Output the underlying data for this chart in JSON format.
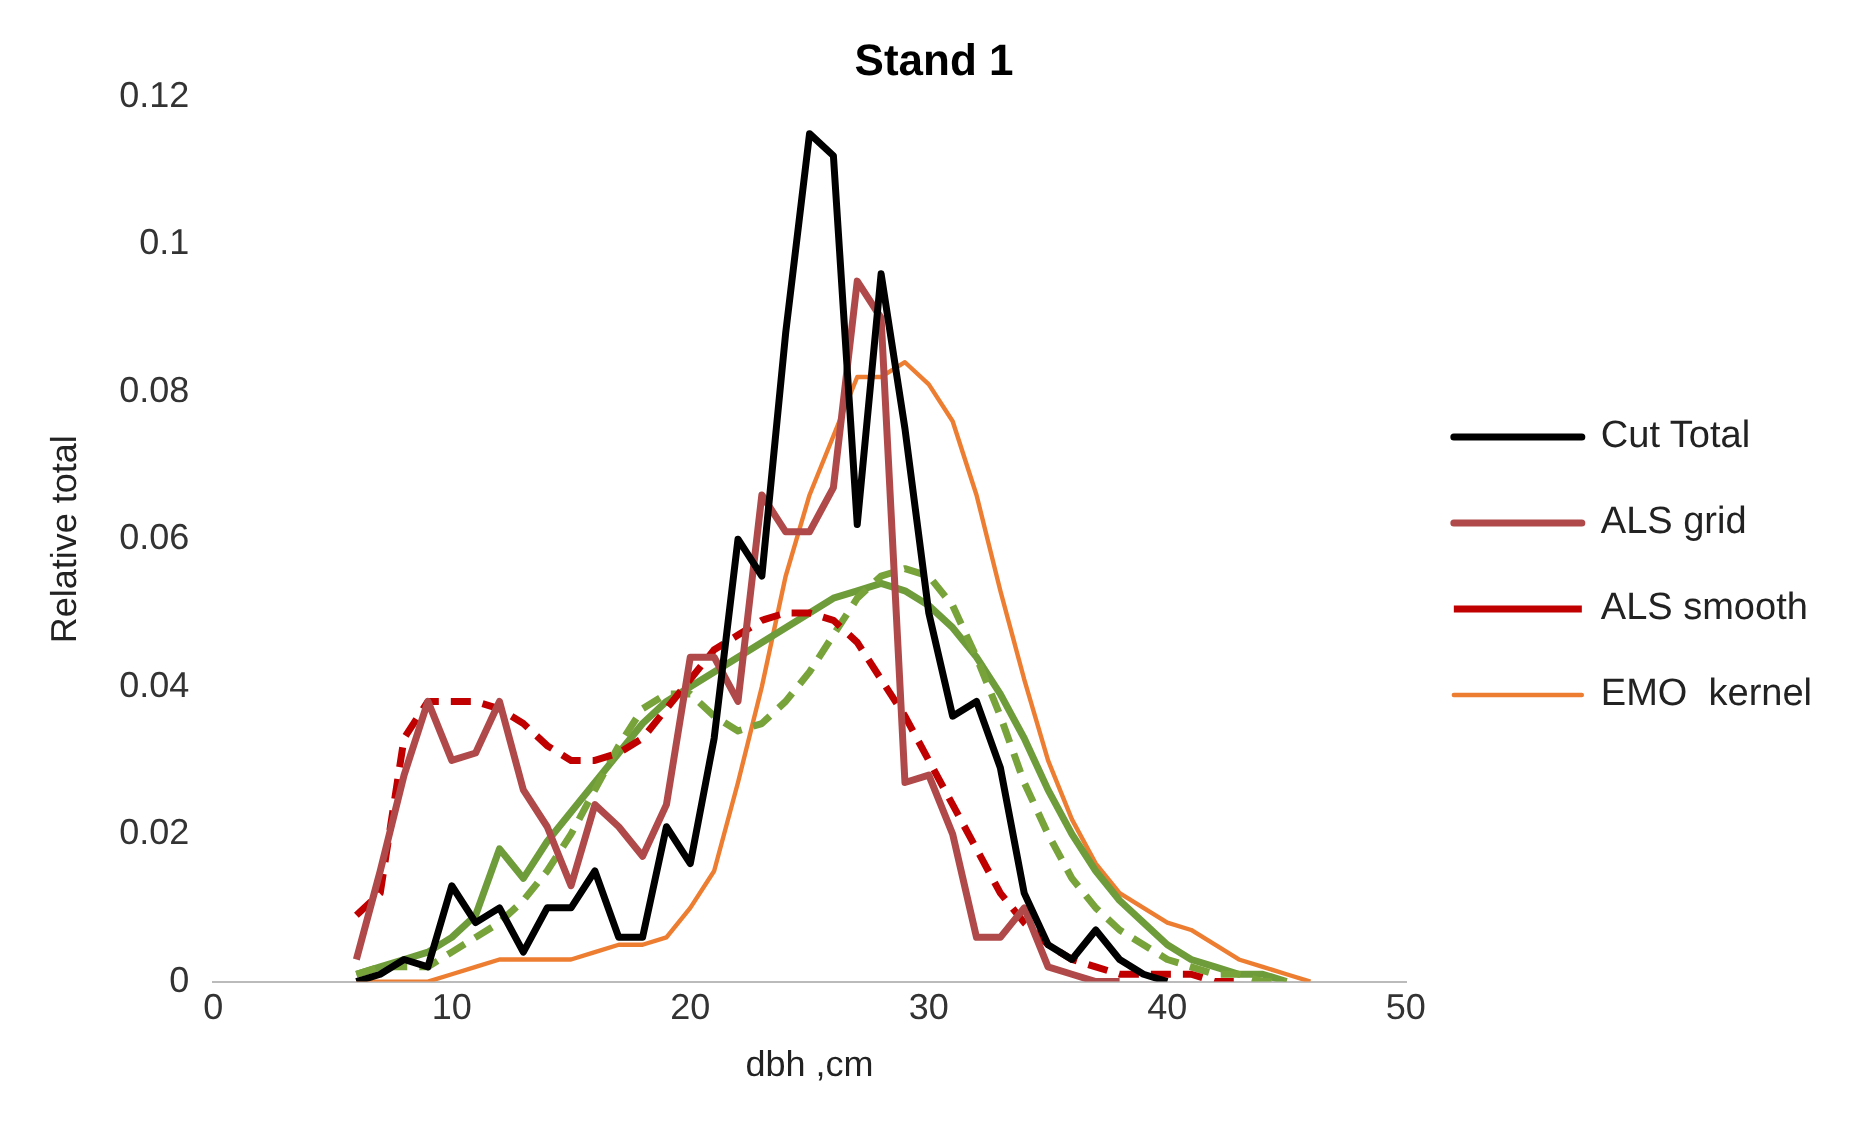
{
  "chart_data": {
    "type": "line",
    "title": "Stand 1",
    "xlabel": "dbh ,cm",
    "ylabel": "Relative total",
    "xlim": [
      0,
      50
    ],
    "xticks": [
      0,
      10,
      20,
      30,
      40,
      50
    ],
    "ylim": [
      0,
      0.12
    ],
    "yticks": [
      0,
      0.02,
      0.04,
      0.06,
      0.08,
      0.1,
      0.12
    ],
    "grid": false,
    "legend": "right",
    "marker": "none",
    "series": [
      {
        "name": "Cut Total",
        "color": "#000000",
        "line_style": "solid",
        "x": [
          6,
          7,
          8,
          9,
          10,
          11,
          12,
          13,
          14,
          15,
          16,
          17,
          18,
          19,
          20,
          21,
          22,
          23,
          24,
          25,
          26,
          27,
          28,
          29,
          30,
          31,
          32,
          33,
          34,
          35,
          36,
          37,
          38,
          39,
          40
        ],
        "values": [
          0,
          0.001,
          0.003,
          0.002,
          0.013,
          0.008,
          0.01,
          0.004,
          0.01,
          0.01,
          0.015,
          0.006,
          0.006,
          0.021,
          0.016,
          0.033,
          0.06,
          0.055,
          0.088,
          0.115,
          0.112,
          0.062,
          0.096,
          0.075,
          0.05,
          0.036,
          0.038,
          0.029,
          0.012,
          0.005,
          0.003,
          0.007,
          0.003,
          0.001,
          0
        ]
      },
      {
        "name": "ALS grid",
        "color": "#b04a4a",
        "line_style": "solid",
        "x": [
          6,
          7,
          8,
          9,
          10,
          11,
          12,
          13,
          14,
          15,
          16,
          17,
          18,
          19,
          20,
          21,
          22,
          23,
          24,
          25,
          26,
          27,
          28,
          29,
          30,
          31,
          32,
          33,
          34,
          35,
          36,
          37,
          38
        ],
        "values": [
          0.003,
          0.015,
          0.028,
          0.038,
          0.03,
          0.031,
          0.038,
          0.026,
          0.021,
          0.013,
          0.024,
          0.021,
          0.017,
          0.024,
          0.044,
          0.044,
          0.038,
          0.066,
          0.061,
          0.061,
          0.067,
          0.095,
          0.09,
          0.027,
          0.028,
          0.02,
          0.006,
          0.006,
          0.01,
          0.002,
          0.001,
          0,
          0
        ]
      },
      {
        "name": "ALS smooth",
        "color": "#c00000",
        "line_style": "dashed",
        "x": [
          6,
          7,
          8,
          9,
          10,
          11,
          12,
          13,
          14,
          15,
          16,
          17,
          18,
          19,
          20,
          21,
          22,
          23,
          24,
          25,
          26,
          27,
          28,
          29,
          30,
          31,
          32,
          33,
          34,
          35,
          36,
          37,
          38,
          39,
          40,
          41,
          42,
          43
        ],
        "values": [
          0.009,
          0.012,
          0.033,
          0.038,
          0.038,
          0.038,
          0.037,
          0.035,
          0.032,
          0.03,
          0.03,
          0.031,
          0.033,
          0.037,
          0.041,
          0.045,
          0.047,
          0.049,
          0.05,
          0.05,
          0.049,
          0.046,
          0.041,
          0.036,
          0.03,
          0.024,
          0.018,
          0.012,
          0.008,
          0.005,
          0.003,
          0.002,
          0.001,
          0.001,
          0.001,
          0.001,
          0,
          0
        ]
      },
      {
        "color": "#77a33a",
        "line_style": "dashed",
        "x": [
          6,
          7,
          8,
          9,
          10,
          11,
          12,
          13,
          14,
          15,
          16,
          17,
          18,
          19,
          20,
          21,
          22,
          23,
          24,
          25,
          26,
          27,
          28,
          29,
          30,
          31,
          32,
          33,
          34,
          35,
          36,
          37,
          38,
          39,
          40,
          41,
          42,
          43,
          44,
          45
        ],
        "values": [
          0.001,
          0.002,
          0.002,
          0.002,
          0.004,
          0.006,
          0.008,
          0.011,
          0.015,
          0.02,
          0.026,
          0.032,
          0.037,
          0.039,
          0.039,
          0.036,
          0.034,
          0.035,
          0.038,
          0.042,
          0.047,
          0.052,
          0.055,
          0.056,
          0.055,
          0.051,
          0.044,
          0.036,
          0.027,
          0.02,
          0.014,
          0.01,
          0.007,
          0.005,
          0.003,
          0.002,
          0.001,
          0.001,
          0,
          0
        ]
      },
      {
        "color": "#6f9c3a",
        "line_style": "solid",
        "x": [
          6,
          7,
          8,
          9,
          10,
          11,
          12,
          13,
          14,
          15,
          16,
          17,
          18,
          19,
          20,
          21,
          22,
          23,
          24,
          25,
          26,
          27,
          28,
          29,
          30,
          31,
          32,
          33,
          34,
          35,
          36,
          37,
          38,
          39,
          40,
          41,
          42,
          43,
          44,
          45
        ],
        "values": [
          0.001,
          0.002,
          0.003,
          0.004,
          0.006,
          0.009,
          0.018,
          0.014,
          0.019,
          0.023,
          0.027,
          0.031,
          0.035,
          0.038,
          0.04,
          0.042,
          0.044,
          0.046,
          0.048,
          0.05,
          0.052,
          0.053,
          0.054,
          0.053,
          0.051,
          0.048,
          0.044,
          0.039,
          0.033,
          0.026,
          0.02,
          0.015,
          0.011,
          0.008,
          0.005,
          0.003,
          0.002,
          0.001,
          0.001,
          0
        ]
      },
      {
        "name": "EMO  kernel",
        "color": "#ed7d31",
        "line_style": "solid",
        "x": [
          6,
          7,
          8,
          9,
          10,
          11,
          12,
          13,
          14,
          15,
          16,
          17,
          18,
          19,
          20,
          21,
          22,
          23,
          24,
          25,
          26,
          27,
          28,
          29,
          30,
          31,
          32,
          33,
          34,
          35,
          36,
          37,
          38,
          39,
          40,
          41,
          42,
          43,
          44,
          45,
          46
        ],
        "values": [
          0,
          0,
          0,
          0,
          0.001,
          0.002,
          0.003,
          0.003,
          0.003,
          0.003,
          0.004,
          0.005,
          0.005,
          0.006,
          0.01,
          0.015,
          0.027,
          0.04,
          0.055,
          0.066,
          0.074,
          0.082,
          0.082,
          0.084,
          0.081,
          0.076,
          0.066,
          0.053,
          0.041,
          0.03,
          0.022,
          0.016,
          0.012,
          0.01,
          0.008,
          0.007,
          0.005,
          0.003,
          0.002,
          0.001,
          0
        ]
      }
    ]
  }
}
